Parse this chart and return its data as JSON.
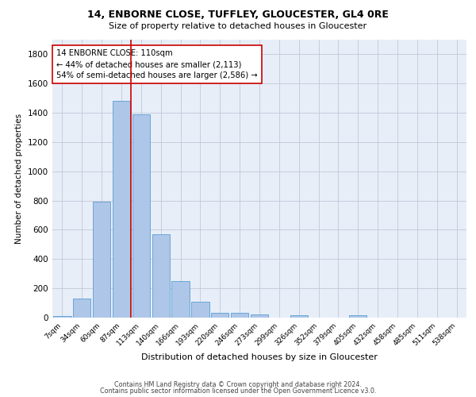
{
  "title1": "14, ENBORNE CLOSE, TUFFLEY, GLOUCESTER, GL4 0RE",
  "title2": "Size of property relative to detached houses in Gloucester",
  "xlabel": "Distribution of detached houses by size in Gloucester",
  "ylabel": "Number of detached properties",
  "categories": [
    "7sqm",
    "34sqm",
    "60sqm",
    "87sqm",
    "113sqm",
    "140sqm",
    "166sqm",
    "193sqm",
    "220sqm",
    "246sqm",
    "273sqm",
    "299sqm",
    "326sqm",
    "352sqm",
    "379sqm",
    "405sqm",
    "432sqm",
    "458sqm",
    "485sqm",
    "511sqm",
    "538sqm"
  ],
  "values": [
    10,
    130,
    790,
    1480,
    1390,
    570,
    248,
    108,
    35,
    32,
    22,
    0,
    18,
    0,
    0,
    18,
    0,
    0,
    0,
    0,
    0
  ],
  "bar_color": "#aec6e8",
  "bar_edge_color": "#5a9fd4",
  "annotation_text": "14 ENBORNE CLOSE: 110sqm\n← 44% of detached houses are smaller (2,113)\n54% of semi-detached houses are larger (2,586) →",
  "annotation_box_color": "#ffffff",
  "annotation_box_edge": "#cc0000",
  "line_color": "#cc0000",
  "footer1": "Contains HM Land Registry data © Crown copyright and database right 2024.",
  "footer2": "Contains public sector information licensed under the Open Government Licence v3.0.",
  "ylim": [
    0,
    1900
  ],
  "yticks": [
    0,
    200,
    400,
    600,
    800,
    1000,
    1200,
    1400,
    1600,
    1800
  ],
  "background_color": "#e8eef8",
  "grid_color": "#c0c8d8"
}
